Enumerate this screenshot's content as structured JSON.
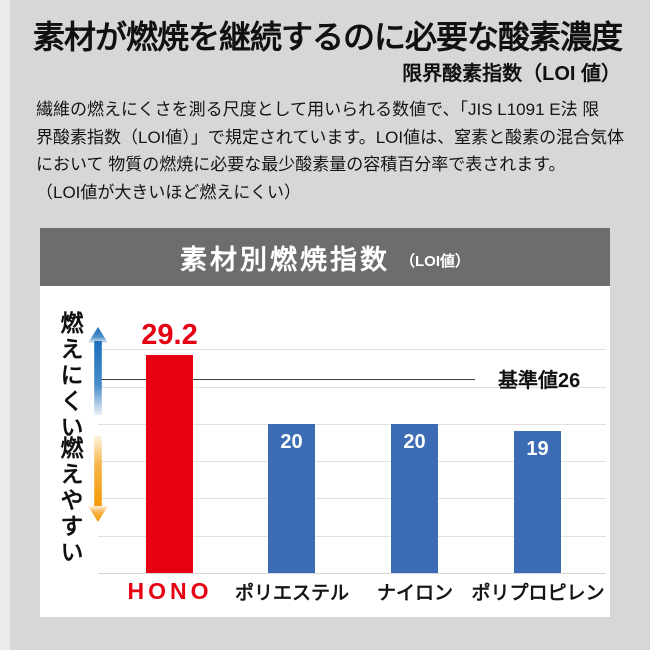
{
  "page": {
    "title": "素材が燃焼を継続するのに必要な酸素濃度",
    "subtitle": "限界酸素指数（LOI 値）",
    "description_lines": [
      "繊維の燃えにくさを測る尺度として用いられる数値で、「JIS L1091 E法 限",
      "界酸素指数（LOI値）」で規定されています。LOI値は、窒素と酸素の混合気体",
      "において 物質の燃焼に必要な最少酸素量の容積百分率で表されます。",
      "（LOI値が大きいほど燃えにくい）"
    ]
  },
  "chart": {
    "header_title": "素材別燃焼指数",
    "header_unit": "（LOI値）",
    "axis_hard_label": "燃えにくい",
    "axis_easy_label": "燃えやすい",
    "reference_label": "基準値26"
  },
  "chart_data": {
    "type": "bar",
    "title": "素材別燃焼指数（LOI値）",
    "categories": [
      "HONO",
      "ポリエステル",
      "ナイロン",
      "ポリプロピレン"
    ],
    "values": [
      29.2,
      20,
      20,
      19
    ],
    "bar_colors": [
      "#e60012",
      "#3b6cb4",
      "#3b6cb4",
      "#3b6cb4"
    ],
    "reference_line": {
      "value": 26,
      "label": "基準値26"
    },
    "ylim": [
      0,
      32
    ],
    "grid": true,
    "gridline_step": 5,
    "legend": "none",
    "ylabel_high": "燃えにくい",
    "ylabel_low": "燃えやすい"
  },
  "colors": {
    "accent_red": "#e60012",
    "bar_blue": "#3b6cb4",
    "header_gray": "#6d6d6f",
    "page_bg": "#d7d7d8",
    "arrow_blue": "#1b72bf",
    "arrow_orange": "#f39800"
  }
}
